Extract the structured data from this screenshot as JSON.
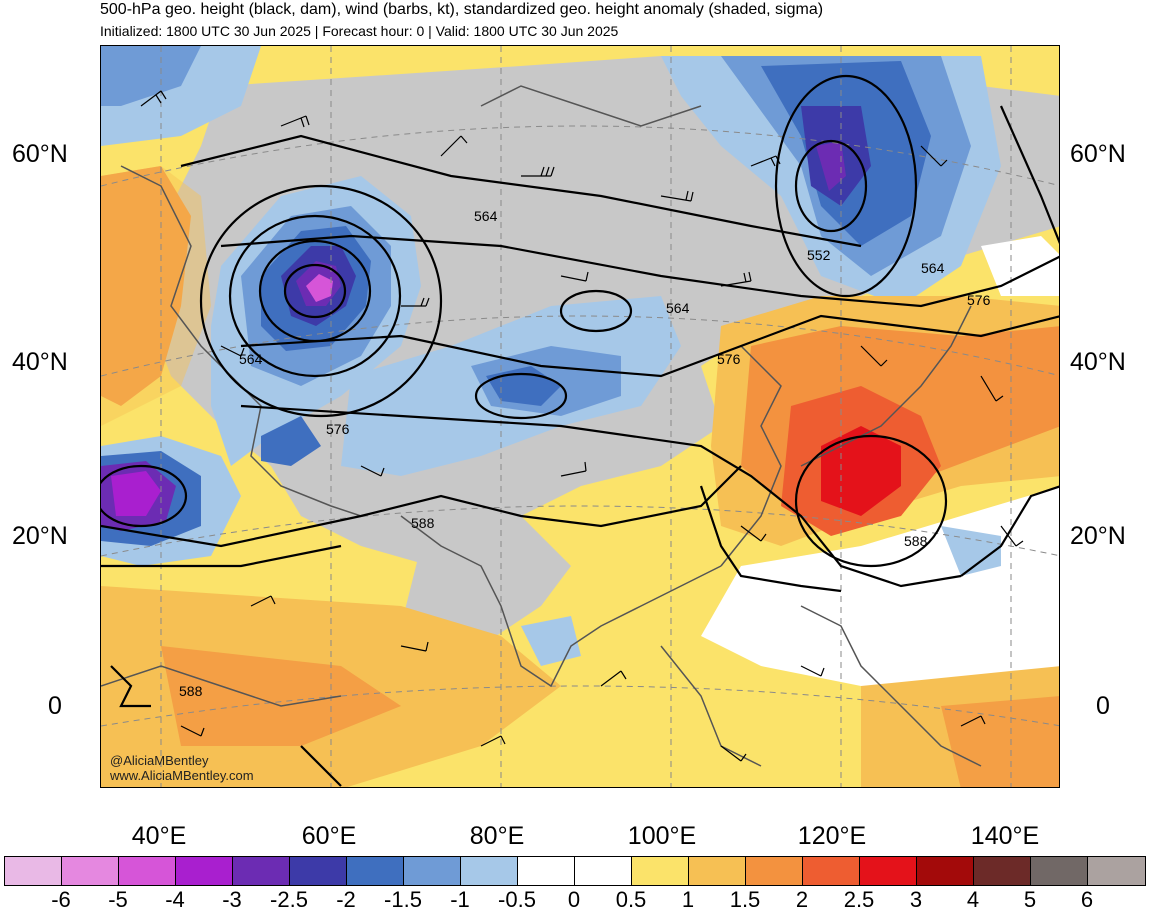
{
  "title": "500-hPa geo. height (black, dam), wind (barbs, kt), standardized geo. height anomaly (shaded, sigma)",
  "subtitle": "Initialized: 1800 UTC 30 Jun 2025 | Forecast hour: 0 | Valid: 1800 UTC 30 Jun 2025",
  "credit": [
    "@AliciaMBentley",
    "www.AliciaMBentley.com"
  ],
  "lat_labels": [
    "60°N",
    "40°N",
    "20°N",
    "0"
  ],
  "lon_labels": [
    "40°E",
    "60°E",
    "80°E",
    "100°E",
    "120°E",
    "140°E"
  ],
  "contour_labels": [
    "564",
    "552",
    "564",
    "576",
    "564",
    "576",
    "588",
    "588",
    "588",
    "576",
    "564"
  ],
  "colorbar": {
    "labels": [
      "-6",
      "-5",
      "-4",
      "-3",
      "-2.5",
      "-2",
      "-1.5",
      "-1",
      "-0.5",
      "0",
      "0.5",
      "1",
      "1.5",
      "2",
      "2.5",
      "3",
      "4",
      "5",
      "6"
    ],
    "colors": [
      "#e9b9e6",
      "#e588e0",
      "#d655d8",
      "#a91fcf",
      "#6c2cb3",
      "#3d3aa8",
      "#3f6fbf",
      "#6f9bd6",
      "#a6c8e8",
      "#ffffff",
      "#ffffff",
      "#fbe36a",
      "#f6c054",
      "#f3923f",
      "#ee5d31",
      "#e4121a",
      "#a30a0a",
      "#6c2a28",
      "#716866",
      "#aba2a0"
    ]
  }
}
